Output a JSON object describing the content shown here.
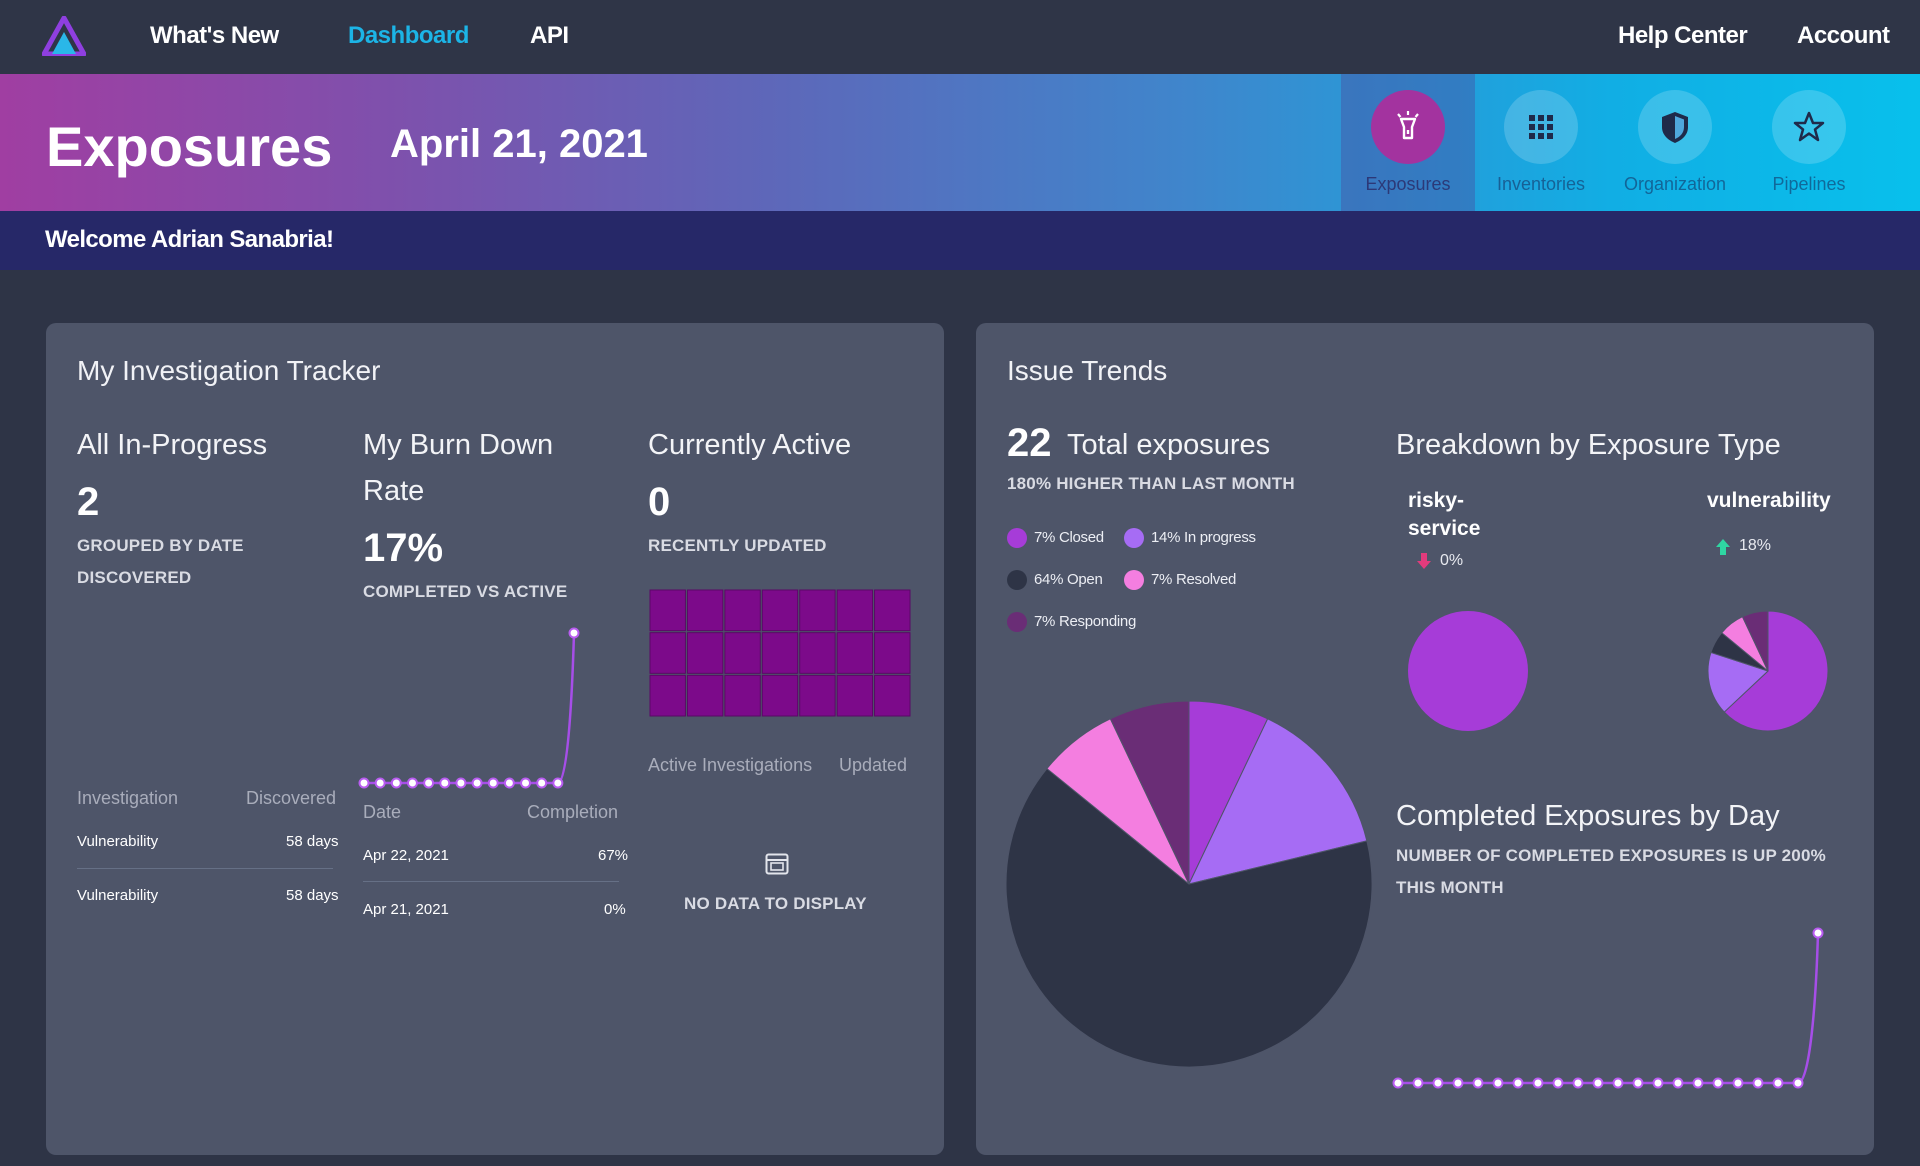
{
  "nav": {
    "links": [
      "What's New",
      "Dashboard",
      "API"
    ],
    "right_links": [
      "Help Center",
      "Account"
    ],
    "active": "Dashboard"
  },
  "banner": {
    "title": "Exposures",
    "date": "April 21, 2021",
    "tabs": [
      {
        "label": "Exposures",
        "icon": "flashlight-icon",
        "active": true
      },
      {
        "label": "Inventories",
        "icon": "grid-icon",
        "active": false
      },
      {
        "label": "Organization",
        "icon": "shield-icon",
        "active": false
      },
      {
        "label": "Pipelines",
        "icon": "star-icon",
        "active": false
      }
    ]
  },
  "welcome": "Welcome Adrian Sanabria!",
  "tracker": {
    "title": "My Investigation Tracker",
    "in_progress": {
      "heading": "All In-Progress",
      "value": "2",
      "caption_line1": "GROUPED BY DATE",
      "caption_line2": "DISCOVERED",
      "columns": [
        "Investigation",
        "Discovered"
      ],
      "rows": [
        [
          "Vulnerability",
          "58 days"
        ],
        [
          "Vulnerability",
          "58 days"
        ]
      ]
    },
    "burn_down": {
      "heading_line1": "My Burn Down",
      "heading_line2": "Rate",
      "value": "17%",
      "caption": "COMPLETED VS ACTIVE",
      "columns": [
        "Date",
        "Completion"
      ],
      "rows": [
        [
          "Apr 22, 2021",
          "67%"
        ],
        [
          "Apr 21, 2021",
          "0%"
        ]
      ]
    },
    "active": {
      "heading": "Currently Active",
      "value": "0",
      "caption": "RECENTLY UPDATED",
      "columns": [
        "Active Investigations",
        "Updated"
      ],
      "empty_text": "NO DATA TO DISPLAY"
    }
  },
  "trends": {
    "title": "Issue Trends",
    "total_value": "22",
    "total_label": "Total exposures",
    "total_caption": "180% HIGHER THAN LAST MONTH",
    "legend": [
      {
        "label": "7% Closed",
        "color": "#a63cd8"
      },
      {
        "label": "14% In progress",
        "color": "#a66cf4"
      },
      {
        "label": "64% Open",
        "color": "#2e3446"
      },
      {
        "label": "7% Resolved",
        "color": "#f47ee0"
      },
      {
        "label": "7% Responding",
        "color": "#6a2d76"
      }
    ],
    "breakdown": {
      "heading": "Breakdown by Exposure Type",
      "types": [
        {
          "label_line1": "risky-",
          "label_line2": "service",
          "change": "0%",
          "direction": "down"
        },
        {
          "label_line1": "vulnerability",
          "label_line2": "",
          "change": "18%",
          "direction": "up"
        }
      ]
    },
    "completed": {
      "heading": "Completed Exposures by Day",
      "caption_line1": "NUMBER OF COMPLETED EXPOSURES IS UP 200%",
      "caption_line2": "THIS MONTH"
    }
  },
  "chart_data": [
    {
      "type": "pie",
      "labels": [
        "Closed",
        "In progress",
        "Open",
        "Resolved",
        "Responding"
      ],
      "values": [
        7,
        14,
        64,
        7,
        7
      ],
      "colors": [
        "#a63cd8",
        "#a66cf4",
        "#2e3446",
        "#f47ee0",
        "#6a2d76"
      ]
    },
    {
      "type": "pie",
      "title": "risky-service",
      "labels": [
        "risky-service"
      ],
      "values": [
        100
      ],
      "colors": [
        "#a63cd8"
      ]
    },
    {
      "type": "pie",
      "title": "vulnerability",
      "labels": [
        "Closed",
        "In progress",
        "Open",
        "Resolved",
        "Responding"
      ],
      "values": [
        63,
        17,
        6,
        7,
        7
      ],
      "colors": [
        "#a63cd8",
        "#a66cf4",
        "#2e3446",
        "#f47ee0",
        "#6a2d76"
      ]
    },
    {
      "type": "line",
      "title": "My Burn Down Rate",
      "values": [
        0,
        0,
        0,
        0,
        0,
        0,
        0,
        0,
        0,
        0,
        0,
        0,
        0,
        100
      ]
    },
    {
      "type": "line",
      "title": "Completed Exposures by Day",
      "values": [
        0,
        0,
        0,
        0,
        0,
        0,
        0,
        0,
        0,
        0,
        0,
        0,
        0,
        0,
        0,
        0,
        0,
        0,
        0,
        0,
        0,
        100
      ]
    },
    {
      "type": "heatmap",
      "title": "Currently Active",
      "rows": 3,
      "cols": 7,
      "values": [
        [
          0,
          0,
          0,
          0,
          0,
          0,
          0
        ],
        [
          0,
          0,
          0,
          0,
          0,
          0,
          0
        ],
        [
          0,
          0,
          0,
          0,
          0,
          0,
          0
        ]
      ]
    }
  ]
}
